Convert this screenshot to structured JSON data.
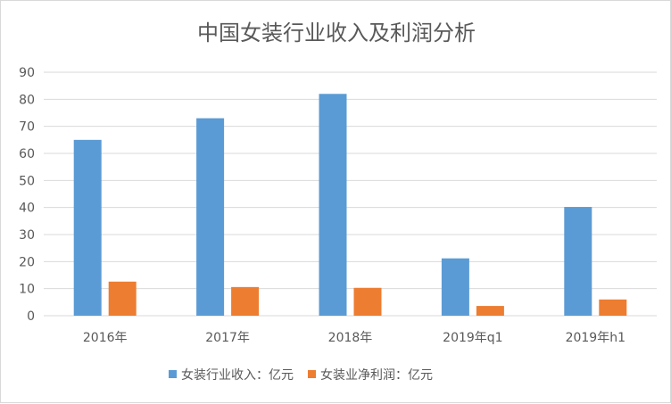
{
  "chart_data": {
    "type": "bar",
    "title": "中国女装行业收入及利润分析",
    "categories": [
      "2016年",
      "2017年",
      "2018年",
      "2019年q1",
      "2019年h1"
    ],
    "series": [
      {
        "name": "女装行业收入：亿元",
        "values": [
          65,
          73,
          82,
          21.2,
          40.2
        ],
        "color": "#5b9bd5"
      },
      {
        "name": "女装业净利润：亿元",
        "values": [
          12.6,
          10.6,
          10.3,
          3.6,
          6.0
        ],
        "color": "#ed7d31"
      }
    ],
    "ylim": [
      0,
      90
    ],
    "yticks": [
      0,
      10,
      20,
      30,
      40,
      50,
      60,
      70,
      80,
      90
    ],
    "grid": true,
    "legend": "bottom"
  }
}
